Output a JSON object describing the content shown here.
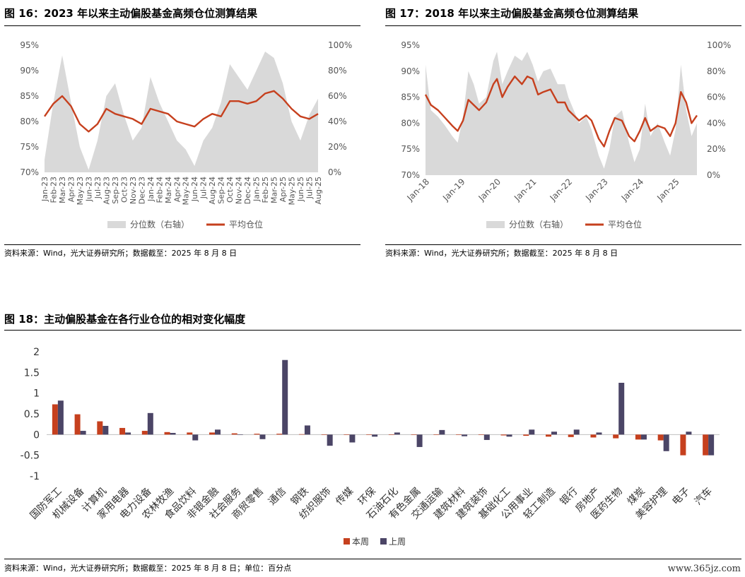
{
  "fig16": {
    "title": "图 16：2023 年以来主动偏股基金高频仓位测算结果",
    "source": "资料来源：Wind，光大证券研究所；数据截至：2025 年 8 月 8 日",
    "chart_data": {
      "type": "area",
      "left_axis": {
        "ticks": [
          "95%",
          "90%",
          "85%",
          "80%",
          "75%",
          "70%"
        ],
        "range": [
          70,
          95
        ]
      },
      "right_axis": {
        "ticks": [
          "100%",
          "80%",
          "60%",
          "40%",
          "20%",
          "0%"
        ],
        "range": [
          0,
          100
        ]
      },
      "x_ticks": [
        "Jan-23",
        "Feb-23",
        "Mar-23",
        "Apr-23",
        "May-23",
        "Jun-23",
        "Jul-23",
        "Aug-23",
        "Sep-23",
        "Oct-23",
        "Nov-23",
        "Dec-23",
        "Jan-24",
        "Feb-24",
        "Mar-24",
        "Apr-24",
        "May-24",
        "Jun-24",
        "Jul-24",
        "Aug-24",
        "Sep-24",
        "Oct-24",
        "Nov-24",
        "Dec-24",
        "Jan-25",
        "Feb-25",
        "Mar-25",
        "Apr-25",
        "May-25",
        "Jun-25",
        "Jul-25",
        "Aug-25"
      ],
      "series": [
        {
          "name": "分位数（右轴）",
          "axis": "right",
          "color": "#d9d9d9",
          "values": [
            10,
            55,
            92,
            55,
            20,
            2,
            25,
            60,
            70,
            45,
            25,
            35,
            75,
            55,
            40,
            25,
            18,
            5,
            25,
            35,
            55,
            85,
            75,
            65,
            80,
            95,
            90,
            70,
            40,
            25,
            45,
            58
          ]
        },
        {
          "name": "平均仓位",
          "axis": "left",
          "color": "#c6401e",
          "values": [
            81,
            83.5,
            85,
            83,
            79.5,
            78,
            79.5,
            82.5,
            81.5,
            81,
            80.5,
            79.5,
            82.5,
            82,
            81.5,
            80,
            79.5,
            79,
            80.5,
            81.5,
            81,
            84,
            84,
            83.5,
            84,
            85.5,
            86,
            84.5,
            82.5,
            81,
            80.5,
            81.5
          ]
        }
      ]
    }
  },
  "fig17": {
    "title": "图 17：2018 年以来主动偏股基金高频仓位测算结果",
    "source": "资料来源：Wind，光大证券研究所；数据截至：2025 年 8 月 8 日",
    "chart_data": {
      "type": "area",
      "left_axis": {
        "ticks": [
          "95%",
          "90%",
          "85%",
          "80%",
          "75%",
          "70%"
        ],
        "range": [
          70,
          95
        ]
      },
      "right_axis": {
        "ticks": [
          "100%",
          "80%",
          "60%",
          "40%",
          "20%",
          "0%"
        ],
        "range": [
          0,
          100
        ]
      },
      "x_ticks": [
        "Jan-18",
        "Jan-19",
        "Jan-20",
        "Jan-21",
        "Jan-22",
        "Jan-23",
        "Jan-24",
        "Jan-25"
      ],
      "x_range": [
        2018.0,
        2025.6
      ],
      "series": [
        {
          "name": "分位数（右轴）",
          "axis": "right",
          "color": "#d9d9d9",
          "x": [
            2018.0,
            2018.15,
            2018.35,
            2018.55,
            2018.75,
            2018.9,
            2019.05,
            2019.2,
            2019.35,
            2019.5,
            2019.7,
            2019.9,
            2020.0,
            2020.15,
            2020.3,
            2020.5,
            2020.7,
            2020.85,
            2021.0,
            2021.15,
            2021.3,
            2021.5,
            2021.7,
            2021.9,
            2022.0,
            2022.15,
            2022.3,
            2022.5,
            2022.65,
            2022.85,
            2023.0,
            2023.15,
            2023.3,
            2023.5,
            2023.7,
            2023.85,
            2024.0,
            2024.15,
            2024.3,
            2024.5,
            2024.7,
            2024.85,
            2025.0,
            2025.15,
            2025.3,
            2025.45,
            2025.6
          ],
          "values": [
            85,
            50,
            45,
            38,
            30,
            25,
            45,
            80,
            70,
            55,
            60,
            88,
            95,
            70,
            80,
            92,
            88,
            95,
            85,
            72,
            80,
            82,
            70,
            70,
            60,
            50,
            40,
            45,
            35,
            15,
            5,
            20,
            45,
            50,
            25,
            10,
            20,
            55,
            30,
            40,
            25,
            15,
            35,
            85,
            50,
            30,
            40
          ]
        },
        {
          "name": "平均仓位",
          "axis": "left",
          "color": "#c6401e",
          "x": [
            2018.0,
            2018.15,
            2018.35,
            2018.55,
            2018.75,
            2018.9,
            2019.05,
            2019.2,
            2019.35,
            2019.5,
            2019.7,
            2019.9,
            2020.0,
            2020.15,
            2020.3,
            2020.5,
            2020.7,
            2020.85,
            2021.0,
            2021.15,
            2021.3,
            2021.5,
            2021.7,
            2021.9,
            2022.0,
            2022.15,
            2022.3,
            2022.5,
            2022.65,
            2022.85,
            2023.0,
            2023.15,
            2023.3,
            2023.5,
            2023.7,
            2023.85,
            2024.0,
            2024.15,
            2024.3,
            2024.5,
            2024.7,
            2024.85,
            2025.0,
            2025.15,
            2025.3,
            2025.45,
            2025.6
          ],
          "values": [
            85.5,
            83.5,
            82.5,
            81,
            79.5,
            78.5,
            80.5,
            84.5,
            83.5,
            82.5,
            84,
            87.5,
            88.5,
            85,
            87,
            89,
            87.5,
            89,
            88.5,
            85.5,
            86,
            86.5,
            84,
            84,
            82.5,
            81.5,
            80.5,
            81.5,
            80.5,
            77,
            75.5,
            78.5,
            81,
            80.5,
            77.5,
            76.5,
            78.5,
            81,
            78.5,
            79.5,
            79,
            77.5,
            80,
            86,
            84,
            80,
            81.5
          ]
        }
      ]
    }
  },
  "fig18": {
    "title": "图 18：主动偏股基金在各行业仓位的相对变化幅度",
    "source": "资料来源：Wind，光大证券研究所；数据截至：2025 年 8 月 8 日；单位：百分点",
    "chart_data": {
      "type": "bar",
      "ylim": [
        -1,
        2
      ],
      "y_ticks": [
        "2",
        "1.5",
        "1",
        "0.5",
        "0",
        "-0.5",
        "-1"
      ],
      "categories": [
        "国防军工",
        "机械设备",
        "计算机",
        "家用电器",
        "电力设备",
        "农林牧渔",
        "食品饮料",
        "非银金融",
        "社会服务",
        "商贸零售",
        "通信",
        "钢铁",
        "纺织服饰",
        "传媒",
        "环保",
        "石油石化",
        "有色金属",
        "交通运输",
        "建筑材料",
        "建筑装饰",
        "基础化工",
        "公用事业",
        "轻工制造",
        "银行",
        "房地产",
        "医药生物",
        "煤炭",
        "美容护理",
        "电子",
        "汽车"
      ],
      "series": [
        {
          "name": "本周",
          "color": "#c6401e",
          "values": [
            0.73,
            0.49,
            0.32,
            0.16,
            0.09,
            0.06,
            0.05,
            0.05,
            0.03,
            0.02,
            0.02,
            0.01,
            -0.01,
            -0.01,
            -0.01,
            -0.01,
            0.0,
            0.0,
            0.0,
            0.0,
            -0.02,
            -0.03,
            -0.05,
            -0.06,
            -0.07,
            -0.09,
            -0.12,
            -0.14,
            -0.5,
            -0.5
          ]
        },
        {
          "name": "上周",
          "color": "#4b4566",
          "values": [
            0.82,
            0.09,
            0.21,
            0.05,
            0.52,
            0.04,
            -0.14,
            0.12,
            0.0,
            -0.11,
            1.8,
            0.22,
            -0.27,
            -0.19,
            -0.05,
            0.05,
            -0.3,
            0.11,
            -0.04,
            -0.13,
            -0.05,
            0.12,
            0.07,
            0.12,
            0.05,
            1.25,
            -0.12,
            -0.4,
            0.07,
            -0.5
          ]
        }
      ]
    }
  },
  "watermark": "www.365jz.com"
}
